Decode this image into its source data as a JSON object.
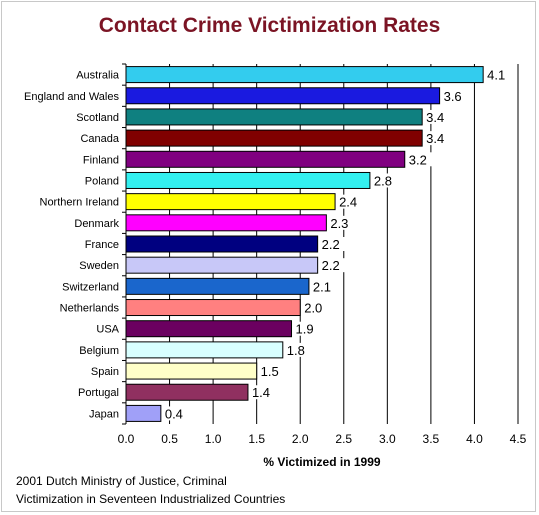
{
  "chart_data": {
    "type": "bar",
    "orientation": "horizontal",
    "title": "Contact Crime Victimization Rates",
    "xlabel": "% Victimized in 1999",
    "categories": [
      "Australia",
      "England and Wales",
      "Scotland",
      "Canada",
      "Finland",
      "Poland",
      "Northern Ireland",
      "Denmark",
      "France",
      "Sweden",
      "Switzerland",
      "Netherlands",
      "USA",
      "Belgium",
      "Spain",
      "Portugal",
      "Japan"
    ],
    "values": [
      4.1,
      3.6,
      3.4,
      3.4,
      3.2,
      2.8,
      2.4,
      2.3,
      2.2,
      2.2,
      2.1,
      2.0,
      1.9,
      1.8,
      1.5,
      1.4,
      0.4
    ],
    "value_labels": [
      "4.1",
      "3.6",
      "3.4",
      "3.4",
      "3.2",
      "2.8",
      "2.4",
      "2.3",
      "2.2",
      "2.2",
      "2.1",
      "2.0",
      "1.9",
      "1.8",
      "1.5",
      "1.4",
      "0.4"
    ],
    "colors": [
      "#33ccee",
      "#1a1ae0",
      "#0f8080",
      "#800000",
      "#800080",
      "#33f0f0",
      "#ffff00",
      "#ff00ff",
      "#000080",
      "#c8c8f8",
      "#1a66cc",
      "#ff8080",
      "#6b0060",
      "#d8ffff",
      "#ffffc8",
      "#903060",
      "#a0a0f8"
    ],
    "xlim": [
      0,
      4.5
    ],
    "xticks": [
      "0.0",
      "0.5",
      "1.0",
      "1.5",
      "2.0",
      "2.5",
      "3.0",
      "3.5",
      "4.0",
      "4.5"
    ],
    "grid": true,
    "legend": false
  },
  "source": {
    "line1": "2001 Dutch Ministry of Justice, Criminal",
    "line2": "Victimization in Seventeen Industrialized Countries"
  }
}
